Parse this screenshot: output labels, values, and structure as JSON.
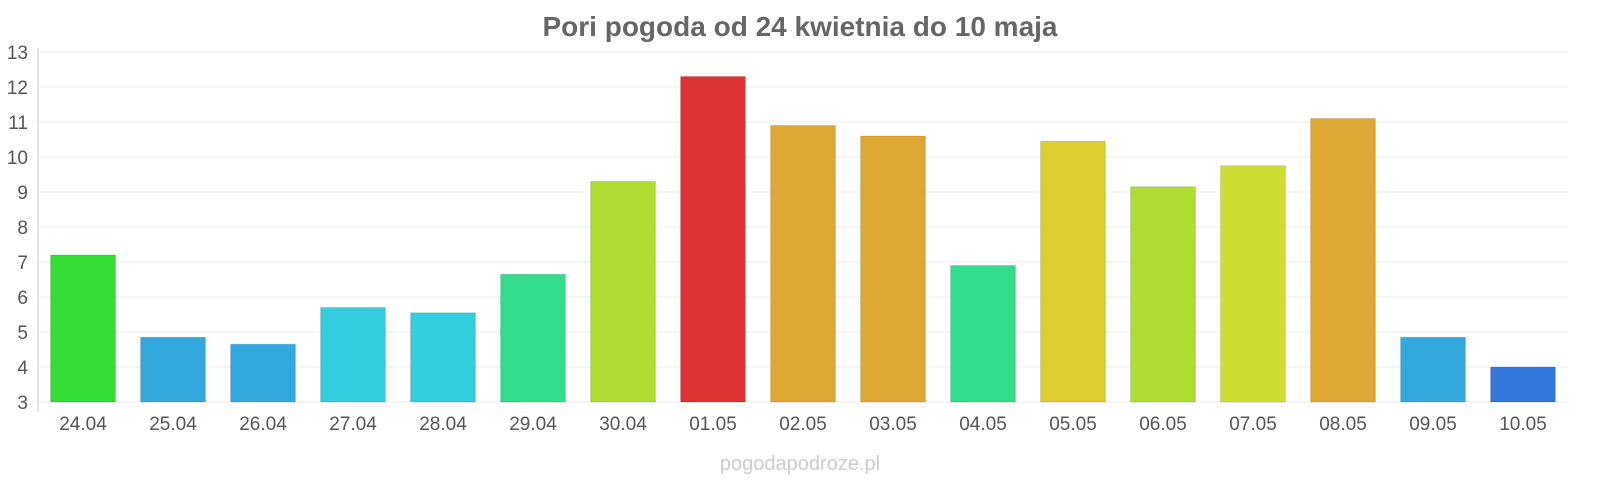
{
  "chart_data": {
    "type": "bar",
    "title": "Pori pogoda od 24 kwietnia do 10 maja",
    "xlabel": "",
    "ylabel": "",
    "ylim": [
      3,
      13
    ],
    "yticks": [
      3,
      4,
      5,
      6,
      7,
      8,
      9,
      10,
      11,
      12,
      13
    ],
    "grid": true,
    "legend": "none",
    "categories": [
      "24.04",
      "25.04",
      "26.04",
      "27.04",
      "28.04",
      "29.04",
      "30.04",
      "01.05",
      "02.05",
      "03.05",
      "04.05",
      "05.05",
      "06.05",
      "07.05",
      "08.05",
      "09.05",
      "10.05"
    ],
    "values": [
      7.2,
      4.85,
      4.65,
      5.7,
      5.55,
      6.65,
      9.3,
      12.3,
      10.9,
      10.6,
      6.9,
      10.45,
      9.15,
      9.75,
      11.1,
      4.85,
      4.0
    ],
    "colors": [
      "#33dd33",
      "#33a8dd",
      "#33a8dd",
      "#33cddd",
      "#33cddd",
      "#33dd8c",
      "#addd33",
      "#dd3333",
      "#dda833",
      "#dda833",
      "#33dd8c",
      "#ddcd33",
      "#addd33",
      "#cddd33",
      "#dda833",
      "#33a8dd",
      "#3378dd"
    ]
  },
  "watermark": "pogodapodroze.pl"
}
